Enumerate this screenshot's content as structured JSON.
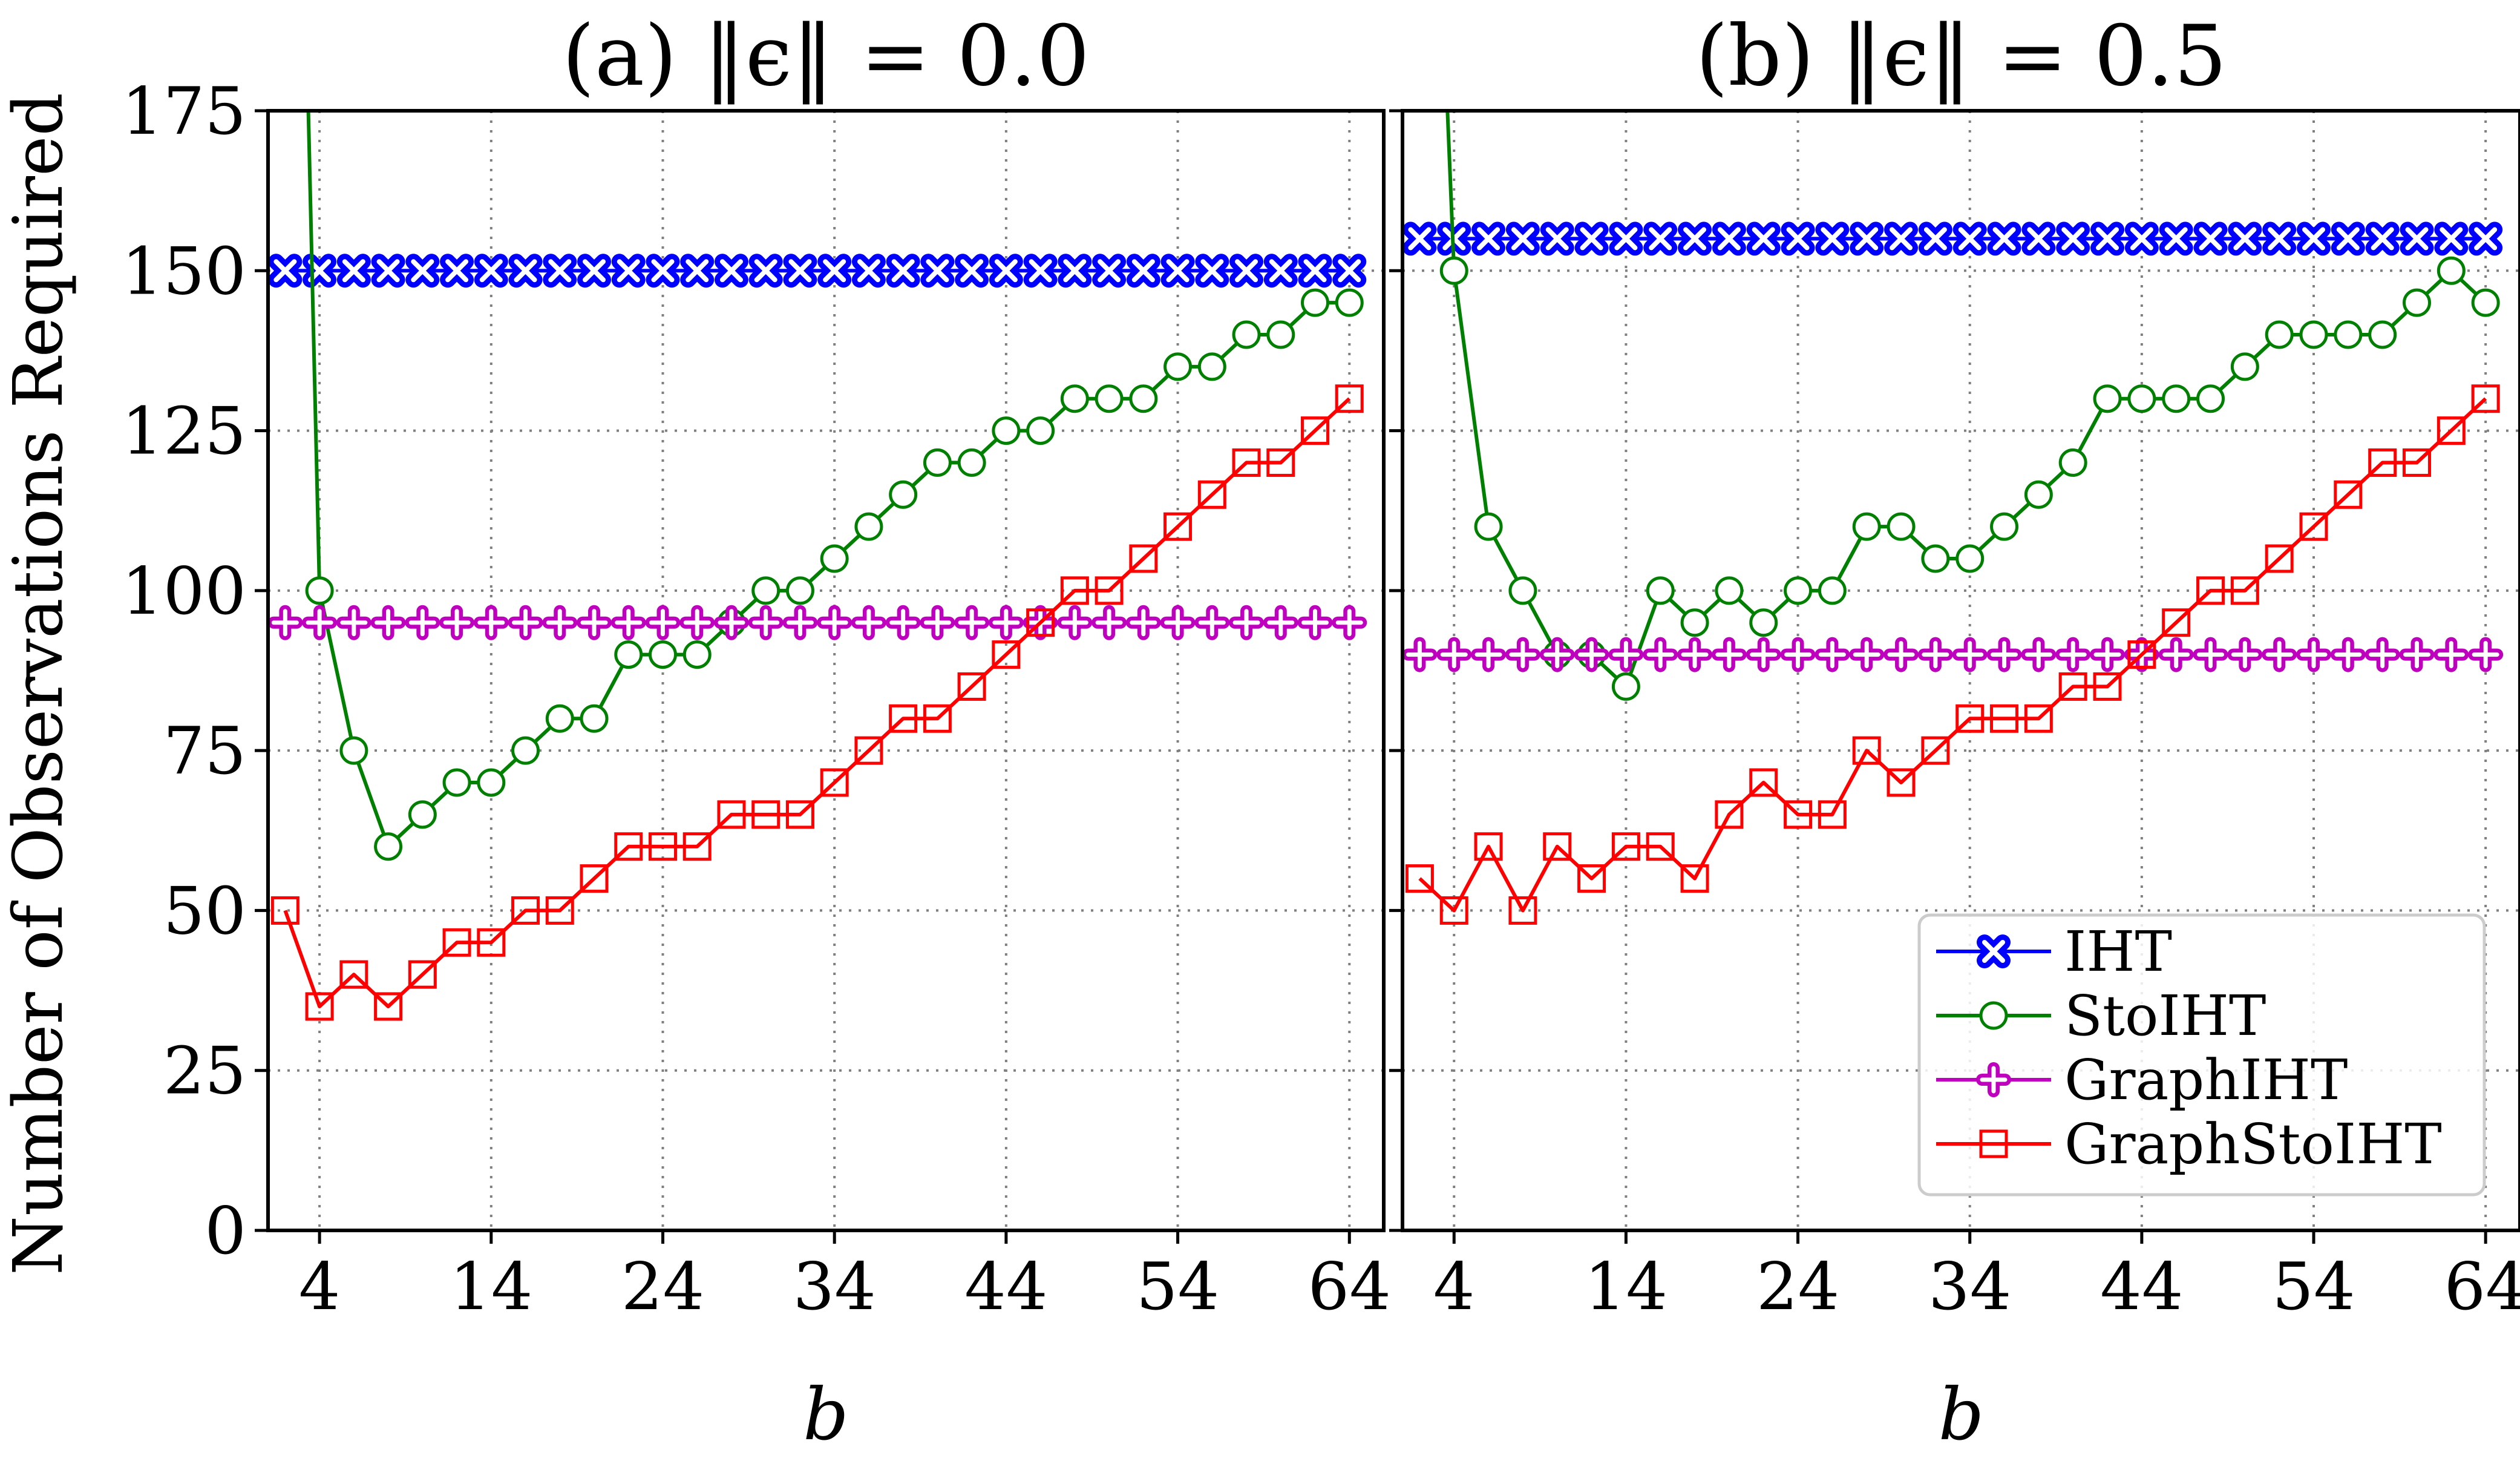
{
  "chart_data": [
    {
      "type": "line",
      "title": "(a) ‖ϵ‖ = 0.0",
      "xlabel": "b",
      "ylabel": "Number of Observations Required",
      "xlim": [
        1,
        66
      ],
      "ylim": [
        0,
        175
      ],
      "xticks": [
        4,
        14,
        24,
        34,
        44,
        54,
        64
      ],
      "yticks": [
        0,
        25,
        50,
        75,
        100,
        125,
        150,
        175
      ],
      "grid": true,
      "x": [
        2,
        4,
        6,
        8,
        10,
        12,
        14,
        16,
        18,
        20,
        22,
        24,
        26,
        28,
        30,
        32,
        34,
        36,
        38,
        40,
        42,
        44,
        46,
        48,
        50,
        52,
        54,
        56,
        58,
        60,
        62,
        64
      ],
      "series": [
        {
          "name": "IHT",
          "color": "#0000ff",
          "marker": "x",
          "start_x": 2,
          "extrapolate": false,
          "values": [
            150,
            150,
            150,
            150,
            150,
            150,
            150,
            150,
            150,
            150,
            150,
            150,
            150,
            150,
            150,
            150,
            150,
            150,
            150,
            150,
            150,
            150,
            150,
            150,
            150,
            150,
            150,
            150,
            150,
            150,
            150,
            150
          ]
        },
        {
          "name": "StoIHT",
          "color": "#008000",
          "marker": "o",
          "start_x": 4,
          "extrapolate": true,
          "values": [
            null,
            100,
            75,
            60,
            65,
            70,
            70,
            75,
            80,
            80,
            90,
            90,
            90,
            95,
            100,
            100,
            105,
            110,
            115,
            120,
            120,
            125,
            125,
            130,
            130,
            130,
            135,
            135,
            140,
            140,
            145,
            145
          ]
        },
        {
          "name": "GraphIHT",
          "color": "#bf00bf",
          "marker": "plus",
          "start_x": 2,
          "extrapolate": false,
          "values": [
            95,
            95,
            95,
            95,
            95,
            95,
            95,
            95,
            95,
            95,
            95,
            95,
            95,
            95,
            95,
            95,
            95,
            95,
            95,
            95,
            95,
            95,
            95,
            95,
            95,
            95,
            95,
            95,
            95,
            95,
            95,
            95
          ]
        },
        {
          "name": "GraphStoIHT",
          "color": "#ff0000",
          "marker": "s",
          "start_x": 2,
          "extrapolate": false,
          "values": [
            50,
            35,
            40,
            35,
            40,
            45,
            45,
            50,
            50,
            55,
            60,
            60,
            60,
            65,
            65,
            65,
            70,
            75,
            80,
            80,
            85,
            90,
            95,
            100,
            100,
            105,
            110,
            115,
            120,
            120,
            125,
            130
          ]
        }
      ]
    },
    {
      "type": "line",
      "title": "(b) ‖ϵ‖ = 0.5",
      "xlabel": "b",
      "ylabel": "",
      "xlim": [
        1,
        66
      ],
      "ylim": [
        0,
        175
      ],
      "xticks": [
        4,
        14,
        24,
        34,
        44,
        54,
        64
      ],
      "yticks": [
        0,
        25,
        50,
        75,
        100,
        125,
        150,
        175
      ],
      "grid": true,
      "x": [
        2,
        4,
        6,
        8,
        10,
        12,
        14,
        16,
        18,
        20,
        22,
        24,
        26,
        28,
        30,
        32,
        34,
        36,
        38,
        40,
        42,
        44,
        46,
        48,
        50,
        52,
        54,
        56,
        58,
        60,
        62,
        64
      ],
      "series": [
        {
          "name": "IHT",
          "color": "#0000ff",
          "marker": "x",
          "start_x": 2,
          "extrapolate": false,
          "values": [
            155,
            155,
            155,
            155,
            155,
            155,
            155,
            155,
            155,
            155,
            155,
            155,
            155,
            155,
            155,
            155,
            155,
            155,
            155,
            155,
            155,
            155,
            155,
            155,
            155,
            155,
            155,
            155,
            155,
            155,
            155,
            155
          ]
        },
        {
          "name": "StoIHT",
          "color": "#008000",
          "marker": "o",
          "start_x": 4,
          "extrapolate": true,
          "values": [
            null,
            150,
            110,
            100,
            90,
            90,
            85,
            100,
            95,
            100,
            95,
            100,
            100,
            110,
            110,
            105,
            105,
            110,
            115,
            120,
            130,
            130,
            130,
            130,
            135,
            140,
            140,
            140,
            140,
            145,
            150,
            145
          ]
        },
        {
          "name": "GraphIHT",
          "color": "#bf00bf",
          "marker": "plus",
          "start_x": 2,
          "extrapolate": false,
          "values": [
            90,
            90,
            90,
            90,
            90,
            90,
            90,
            90,
            90,
            90,
            90,
            90,
            90,
            90,
            90,
            90,
            90,
            90,
            90,
            90,
            90,
            90,
            90,
            90,
            90,
            90,
            90,
            90,
            90,
            90,
            90,
            90
          ]
        },
        {
          "name": "GraphStoIHT",
          "color": "#ff0000",
          "marker": "s",
          "start_x": 2,
          "extrapolate": false,
          "values": [
            55,
            50,
            60,
            50,
            60,
            55,
            60,
            60,
            55,
            65,
            70,
            65,
            65,
            75,
            70,
            75,
            80,
            80,
            80,
            85,
            85,
            90,
            95,
            100,
            100,
            105,
            110,
            115,
            120,
            120,
            125,
            130
          ]
        }
      ]
    }
  ],
  "legend": {
    "placement": "lower-right of panel (b)",
    "entries": [
      "IHT",
      "StoIHT",
      "GraphIHT",
      "GraphStoIHT"
    ]
  }
}
